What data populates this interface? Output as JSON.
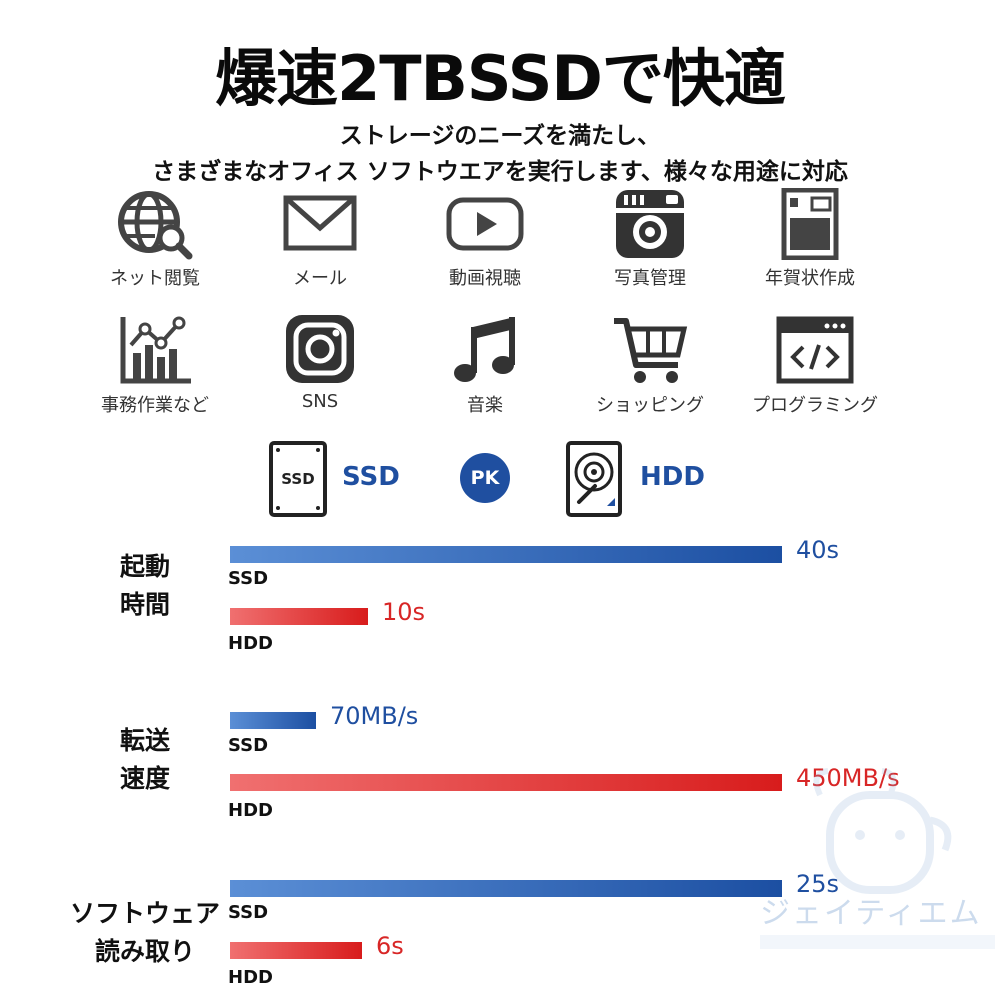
{
  "header": {
    "title": "爆速2TBSSDで快適",
    "subtitle_line1": "ストレージのニーズを満たし、",
    "subtitle_line2": "さまざまなオフィス ソフトウエアを実行します、様々な用途に対応"
  },
  "features": [
    {
      "label": "ネット閲覧",
      "icon": "globe-search-icon"
    },
    {
      "label": "メール",
      "icon": "mail-icon"
    },
    {
      "label": "動画視聴",
      "icon": "video-play-icon"
    },
    {
      "label": "写真管理",
      "icon": "camera-icon"
    },
    {
      "label": "年賀状作成",
      "icon": "postcard-icon"
    },
    {
      "label": "事務作業など",
      "icon": "line-chart-icon"
    },
    {
      "label": "SNS",
      "icon": "instagram-icon"
    },
    {
      "label": "音楽",
      "icon": "music-note-icon"
    },
    {
      "label": "ショッピング",
      "icon": "shopping-cart-icon"
    },
    {
      "label": "プログラミング",
      "icon": "code-window-icon"
    }
  ],
  "comparison": {
    "ssd_label": "SSD",
    "vs_label": "PK",
    "hdd_label": "HDD",
    "ssd_icon_text": "SSD",
    "colors": {
      "ssd": "#1f4fa0",
      "hdd": "#d81c1c"
    }
  },
  "metrics": [
    {
      "label_line1": "起動",
      "label_line2": "時間",
      "ssd": {
        "tag": "SSD",
        "value": 40,
        "value_label": "40s"
      },
      "hdd": {
        "tag": "HDD",
        "value": 10,
        "value_label": "10s"
      }
    },
    {
      "label_line1": "転送",
      "label_line2": "速度",
      "ssd": {
        "tag": "SSD",
        "value": 70,
        "value_label": "70MB/s"
      },
      "hdd": {
        "tag": "HDD",
        "value": 450,
        "value_label": "450MB/s"
      }
    },
    {
      "label_line1": "ソフトウェア",
      "label_line2": "読み取り",
      "ssd": {
        "tag": "SSD",
        "value": 25,
        "value_label": "25s"
      },
      "hdd": {
        "tag": "HDD",
        "value": 6,
        "value_label": "6s"
      }
    }
  ],
  "watermark": {
    "text": "ジェイティエム"
  }
}
